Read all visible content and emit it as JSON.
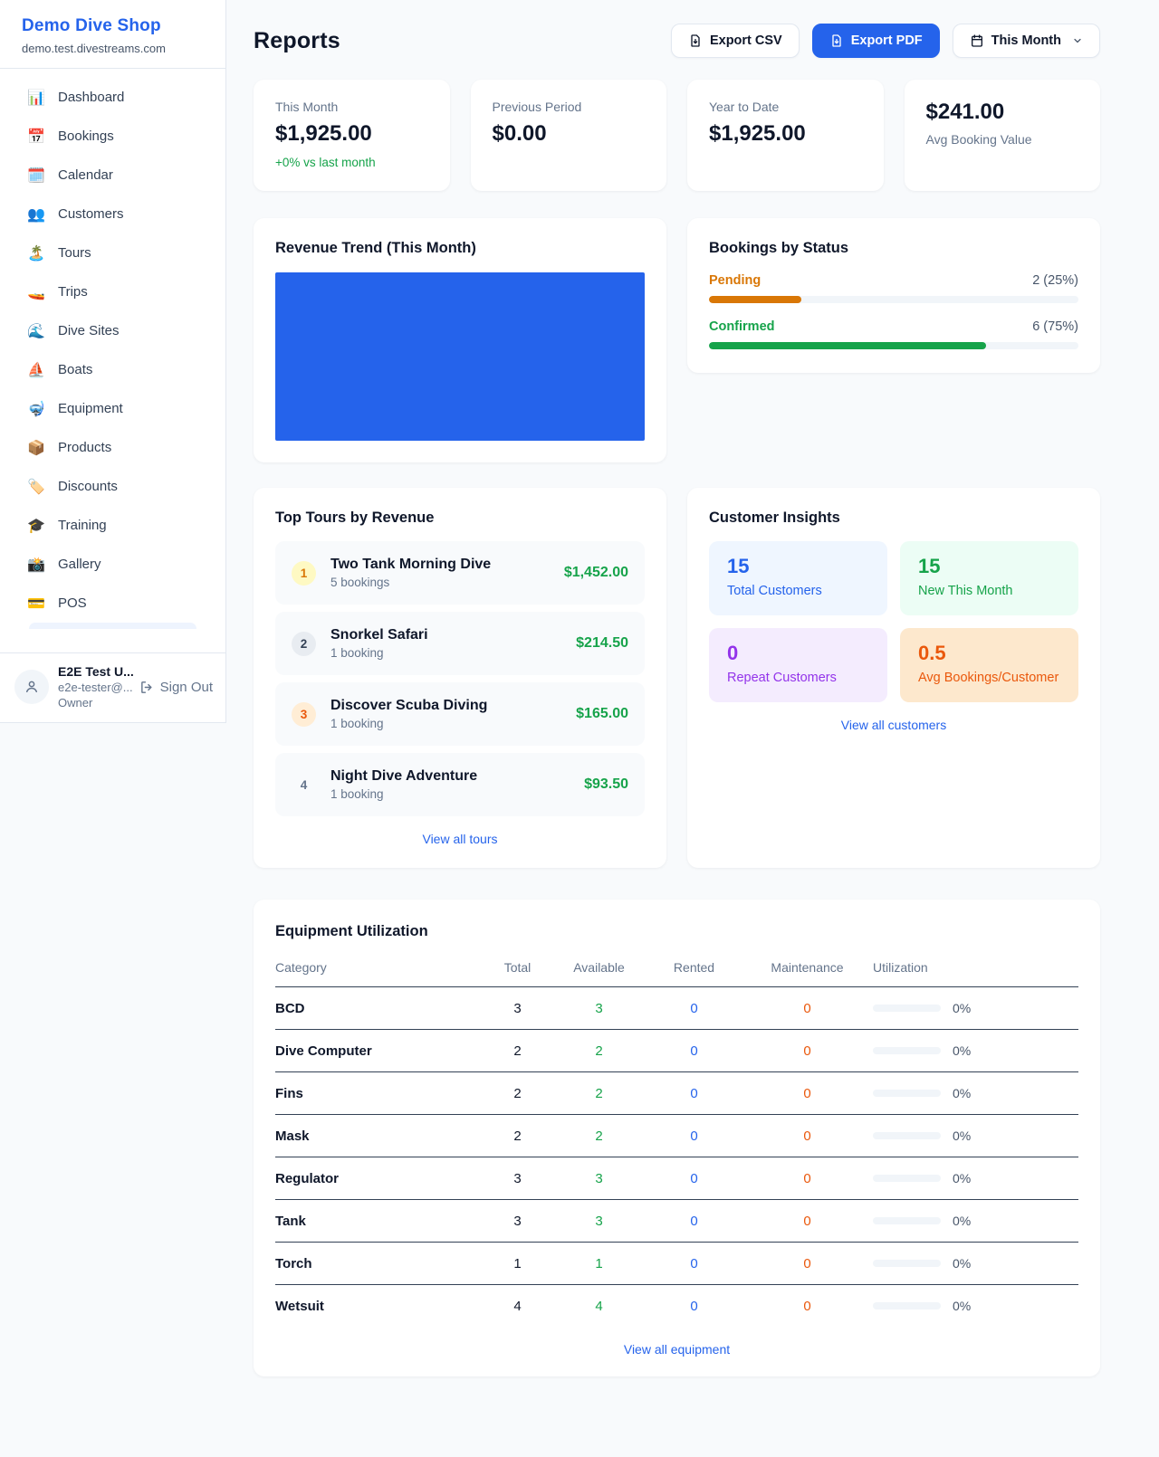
{
  "colors": {
    "accent_blue": "#2563eb",
    "green": "#16a34a",
    "amber": "#d97706",
    "orange": "#ea580c",
    "purple": "#9333ea"
  },
  "sidebar": {
    "shop_name": "Demo Dive Shop",
    "shop_domain": "demo.test.divestreams.com",
    "items": [
      {
        "icon": "📊",
        "label": "Dashboard"
      },
      {
        "icon": "📅",
        "label": "Bookings"
      },
      {
        "icon": "🗓️",
        "label": "Calendar"
      },
      {
        "icon": "👥",
        "label": "Customers"
      },
      {
        "icon": "🏝️",
        "label": "Tours"
      },
      {
        "icon": "🚤",
        "label": "Trips"
      },
      {
        "icon": "🌊",
        "label": "Dive Sites"
      },
      {
        "icon": "⛵",
        "label": "Boats"
      },
      {
        "icon": "🤿",
        "label": "Equipment"
      },
      {
        "icon": "📦",
        "label": "Products"
      },
      {
        "icon": "🏷️",
        "label": "Discounts"
      },
      {
        "icon": "🎓",
        "label": "Training"
      },
      {
        "icon": "📸",
        "label": "Gallery"
      },
      {
        "icon": "💳",
        "label": "POS"
      }
    ],
    "user": {
      "name": "E2E Test U...",
      "email": "e2e-tester@...",
      "role": "Owner",
      "sign_out_label": "Sign Out"
    }
  },
  "header": {
    "title": "Reports",
    "export_csv_label": "Export CSV",
    "export_pdf_label": "Export PDF",
    "period_label": "This Month"
  },
  "stats": [
    {
      "label": "This Month",
      "value": "$1,925.00",
      "delta": "+0% vs last month"
    },
    {
      "label": "Previous Period",
      "value": "$0.00"
    },
    {
      "label": "Year to Date",
      "value": "$1,925.00"
    },
    {
      "label": "Avg Booking Value",
      "value": "$241.00"
    }
  ],
  "revenue_trend": {
    "title": "Revenue Trend (This Month)",
    "bar_color": "#2563eb"
  },
  "bookings_by_status": {
    "title": "Bookings by Status",
    "rows": [
      {
        "label": "Pending",
        "count": "2 (25%)",
        "pct": 25,
        "color": "#d97706"
      },
      {
        "label": "Confirmed",
        "count": "6 (75%)",
        "pct": 75,
        "color": "#16a34a"
      }
    ]
  },
  "chart_data": {
    "type": "bar",
    "title": "Bookings by Status",
    "categories": [
      "Pending",
      "Confirmed"
    ],
    "values": [
      2,
      6
    ],
    "percentages": [
      25,
      75
    ]
  },
  "top_tours": {
    "title": "Top Tours by Revenue",
    "view_all_label": "View all tours",
    "rows": [
      {
        "rank": "1",
        "name": "Two Tank Morning Dive",
        "bookings": "5 bookings",
        "revenue": "$1,452.00"
      },
      {
        "rank": "2",
        "name": "Snorkel Safari",
        "bookings": "1 booking",
        "revenue": "$214.50"
      },
      {
        "rank": "3",
        "name": "Discover Scuba Diving",
        "bookings": "1 booking",
        "revenue": "$165.00"
      },
      {
        "rank": "4",
        "name": "Night Dive Adventure",
        "bookings": "1 booking",
        "revenue": "$93.50"
      }
    ]
  },
  "customer_insights": {
    "title": "Customer Insights",
    "view_all_label": "View all customers",
    "cards": [
      {
        "value": "15",
        "label": "Total Customers"
      },
      {
        "value": "15",
        "label": "New This Month"
      },
      {
        "value": "0",
        "label": "Repeat Customers"
      },
      {
        "value": "0.5",
        "label": "Avg Bookings/Customer"
      }
    ]
  },
  "equipment": {
    "title": "Equipment Utilization",
    "view_all_label": "View all equipment",
    "columns": [
      "Category",
      "Total",
      "Available",
      "Rented",
      "Maintenance",
      "Utilization"
    ],
    "rows": [
      {
        "category": "BCD",
        "total": "3",
        "available": "3",
        "rented": "0",
        "maintenance": "0",
        "utilization": "0%"
      },
      {
        "category": "Dive Computer",
        "total": "2",
        "available": "2",
        "rented": "0",
        "maintenance": "0",
        "utilization": "0%"
      },
      {
        "category": "Fins",
        "total": "2",
        "available": "2",
        "rented": "0",
        "maintenance": "0",
        "utilization": "0%"
      },
      {
        "category": "Mask",
        "total": "2",
        "available": "2",
        "rented": "0",
        "maintenance": "0",
        "utilization": "0%"
      },
      {
        "category": "Regulator",
        "total": "3",
        "available": "3",
        "rented": "0",
        "maintenance": "0",
        "utilization": "0%"
      },
      {
        "category": "Tank",
        "total": "3",
        "available": "3",
        "rented": "0",
        "maintenance": "0",
        "utilization": "0%"
      },
      {
        "category": "Torch",
        "total": "1",
        "available": "1",
        "rented": "0",
        "maintenance": "0",
        "utilization": "0%"
      },
      {
        "category": "Wetsuit",
        "total": "4",
        "available": "4",
        "rented": "0",
        "maintenance": "0",
        "utilization": "0%"
      }
    ]
  }
}
